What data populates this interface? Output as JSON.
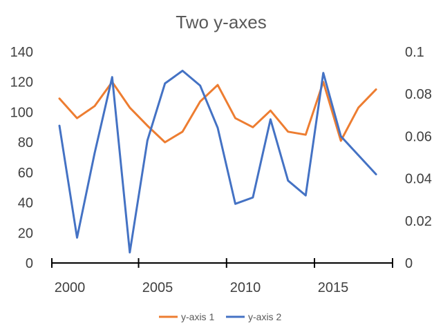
{
  "chart_data": {
    "type": "line",
    "title": "Two y-axes",
    "x": [
      2000,
      2001,
      2002,
      2003,
      2004,
      2005,
      2006,
      2007,
      2008,
      2009,
      2010,
      2011,
      2012,
      2013,
      2014,
      2015,
      2016,
      2017,
      2018
    ],
    "x_ticks": [
      "2000",
      "2005",
      "2010",
      "2015"
    ],
    "xlim": [
      2000,
      2018.4
    ],
    "y_left": {
      "ylim": [
        0,
        140
      ],
      "ticks": [
        "0",
        "20",
        "40",
        "60",
        "80",
        "100",
        "120",
        "140"
      ]
    },
    "y_right": {
      "ylim": [
        0,
        0.1
      ],
      "ticks": [
        "0",
        "0.02",
        "0.04",
        "0.06",
        "0.08",
        "0.1"
      ]
    },
    "series": [
      {
        "name": "y-axis 1",
        "axis": "left",
        "color": "#ED7D31",
        "values": [
          109,
          96,
          104,
          120,
          103,
          91,
          80,
          87,
          107,
          118,
          96,
          90,
          101,
          87,
          85,
          120,
          81,
          103,
          115
        ]
      },
      {
        "name": "y-axis 2",
        "axis": "right",
        "color": "#4472C4",
        "values": [
          0.065,
          0.012,
          0.052,
          0.088,
          0.005,
          0.058,
          0.085,
          0.091,
          0.084,
          0.064,
          0.028,
          0.031,
          0.068,
          0.039,
          0.032,
          0.09,
          0.06,
          0.051,
          0.042
        ]
      }
    ],
    "legend": {
      "position": "bottom"
    },
    "grid": false
  }
}
